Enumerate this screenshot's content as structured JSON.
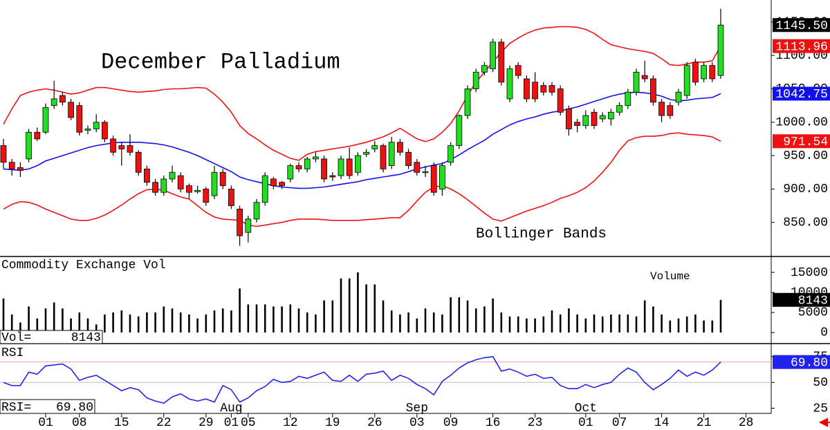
{
  "chart_data": [
    {
      "type": "candlestick",
      "title": "December Palladium",
      "annotation": "Bollinger Bands",
      "categories": [
        null,
        null,
        null,
        null,
        null,
        "01",
        null,
        null,
        null,
        "08",
        null,
        null,
        null,
        null,
        "15",
        null,
        null,
        null,
        null,
        "22",
        null,
        null,
        null,
        null,
        "29",
        null,
        null,
        "01",
        null,
        "05",
        null,
        null,
        null,
        null,
        "12",
        null,
        null,
        null,
        null,
        "19",
        null,
        null,
        null,
        null,
        "26",
        null,
        null,
        null,
        null,
        "03",
        null,
        null,
        null,
        "09",
        null,
        null,
        null,
        null,
        "16",
        null,
        null,
        null,
        null,
        "23",
        null,
        null,
        null,
        null,
        null,
        "01",
        null,
        null,
        null,
        "07",
        null,
        null,
        null,
        null,
        "14",
        null,
        null,
        null,
        null,
        "21",
        null,
        null
      ],
      "months": [
        null,
        null,
        null,
        null,
        null,
        null,
        null,
        null,
        null,
        null,
        null,
        null,
        null,
        null,
        null,
        null,
        null,
        null,
        null,
        null,
        null,
        null,
        null,
        null,
        null,
        null,
        null,
        "Aug",
        null,
        null,
        null,
        null,
        null,
        null,
        null,
        null,
        null,
        null,
        null,
        null,
        null,
        null,
        null,
        null,
        null,
        null,
        null,
        null,
        null,
        "Sep",
        null,
        null,
        null,
        null,
        null,
        null,
        null,
        null,
        null,
        null,
        null,
        null,
        null,
        null,
        null,
        null,
        null,
        null,
        null,
        "Oct",
        null,
        null,
        null,
        null,
        null,
        null,
        null,
        null,
        null,
        null,
        null,
        null,
        null,
        null,
        null,
        null
      ],
      "future_categories": [
        null,
        null,
        "28"
      ],
      "open": [
        965,
        940,
        932,
        945,
        985,
        985,
        1025,
        1040,
        1030,
        1025,
        988,
        990,
        1000,
        975,
        965,
        965,
        955,
        930,
        910,
        895,
        915,
        920,
        905,
        896,
        900,
        890,
        925,
        900,
        870,
        835,
        855,
        880,
        915,
        910,
        915,
        935,
        930,
        945,
        945,
        920,
        920,
        945,
        925,
        952,
        960,
        965,
        935,
        970,
        955,
        940,
        925,
        935,
        900,
        940,
        965,
        1010,
        1050,
        1075,
        1080,
        1120,
        1035,
        1085,
        1065,
        1060,
        1055,
        1055,
        1050,
        1020,
        1000,
        995,
        1015,
        1005,
        1005,
        1015,
        1025,
        1045,
        1070,
        1065,
        1030,
        1025,
        1030,
        1040,
        1090,
        1065,
        1085,
        1070
      ],
      "high": [
        975,
        945,
        940,
        990,
        992,
        1028,
        1062,
        1045,
        1035,
        1030,
        995,
        1012,
        1003,
        980,
        970,
        982,
        958,
        935,
        915,
        920,
        935,
        925,
        908,
        905,
        903,
        935,
        930,
        905,
        875,
        860,
        885,
        925,
        918,
        912,
        938,
        940,
        948,
        955,
        950,
        925,
        950,
        962,
        955,
        960,
        972,
        968,
        978,
        975,
        960,
        945,
        935,
        940,
        940,
        970,
        1012,
        1055,
        1080,
        1090,
        1125,
        1125,
        1085,
        1090,
        1070,
        1075,
        1060,
        1060,
        1055,
        1025,
        1005,
        1018,
        1020,
        1015,
        1020,
        1030,
        1050,
        1080,
        1092,
        1070,
        1035,
        1030,
        1050,
        1090,
        1095,
        1090,
        1090,
        1170
      ],
      "low": [
        930,
        920,
        918,
        940,
        972,
        982,
        1020,
        1025,
        1003,
        980,
        982,
        985,
        970,
        950,
        935,
        950,
        920,
        905,
        890,
        890,
        910,
        895,
        885,
        893,
        875,
        885,
        900,
        870,
        815,
        820,
        850,
        875,
        900,
        900,
        910,
        925,
        925,
        940,
        910,
        912,
        915,
        915,
        920,
        948,
        955,
        925,
        930,
        950,
        930,
        920,
        918,
        890,
        890,
        935,
        960,
        1005,
        1045,
        1070,
        1075,
        1055,
        1030,
        1065,
        1030,
        1030,
        1040,
        1040,
        1010,
        980,
        985,
        990,
        990,
        1000,
        995,
        1010,
        1020,
        1040,
        1060,
        1025,
        1000,
        1005,
        1025,
        1035,
        1055,
        1060,
        1060,
        1065
      ],
      "close": [
        940,
        930,
        928,
        985,
        975,
        1022,
        1035,
        1030,
        1007,
        985,
        990,
        1000,
        975,
        955,
        960,
        955,
        925,
        910,
        895,
        915,
        925,
        900,
        895,
        898,
        880,
        925,
        905,
        875,
        830,
        855,
        880,
        920,
        905,
        905,
        935,
        930,
        945,
        948,
        915,
        918,
        945,
        920,
        950,
        955,
        965,
        930,
        970,
        955,
        935,
        925,
        926,
        895,
        935,
        965,
        1010,
        1050,
        1075,
        1085,
        1120,
        1060,
        1080,
        1070,
        1035,
        1035,
        1045,
        1045,
        1015,
        990,
        995,
        1010,
        995,
        1010,
        1015,
        1025,
        1045,
        1075,
        1065,
        1030,
        1010,
        1010,
        1045,
        1085,
        1060,
        1085,
        1065,
        1145.5
      ],
      "close_last_label": "1145.50",
      "up_color": "#22dd22",
      "down_color": "#ee1111",
      "last_color": "#000000",
      "series": [
        {
          "color": "#ee1111",
          "last_label": "1113.96",
          "values": [
            997,
            1020,
            1040,
            1045,
            1048,
            1050,
            1048,
            1045,
            1042,
            1044,
            1048,
            1052,
            1052,
            1050,
            1048,
            1046,
            1045,
            1046,
            1047,
            1049,
            1050,
            1050,
            1051,
            1052,
            1051,
            1042,
            1030,
            1015,
            995,
            983,
            975,
            966,
            958,
            952,
            946,
            943,
            952,
            956,
            958,
            960,
            962,
            964,
            967,
            970,
            974,
            978,
            984,
            991,
            983,
            975,
            971,
            975,
            985,
            998,
            1017,
            1040,
            1060,
            1075,
            1090,
            1105,
            1118,
            1126,
            1133,
            1138,
            1141,
            1142,
            1143,
            1143,
            1142,
            1139,
            1133,
            1124,
            1116,
            1113,
            1110,
            1108,
            1106,
            1103,
            1095,
            1086,
            1085,
            1087,
            1090,
            1090,
            1092,
            1113.96
          ]
        },
        {
          "color": "#1111ee",
          "last_label": "1042.75",
          "values": [
            930,
            929,
            928,
            930,
            935,
            942,
            946,
            950,
            954,
            958,
            962,
            965,
            967,
            969,
            970,
            970,
            970,
            969,
            968,
            966,
            963,
            959,
            955,
            950,
            944,
            938,
            932,
            926,
            918,
            914,
            911,
            908,
            905,
            903,
            902,
            901,
            901,
            902,
            903,
            905,
            907,
            909,
            911,
            914,
            916,
            918,
            920,
            922,
            926,
            930,
            933,
            936,
            938,
            944,
            951,
            959,
            966,
            973,
            982,
            989,
            996,
            1001,
            1005,
            1008,
            1012,
            1015,
            1017,
            1020,
            1023,
            1027,
            1031,
            1035,
            1039,
            1042,
            1044,
            1045,
            1044,
            1042,
            1039,
            1034,
            1032,
            1033,
            1035,
            1036,
            1037,
            1042.75
          ]
        },
        {
          "color": "#ee1111",
          "last_label": "971.54",
          "values": [
            870,
            877,
            881,
            880,
            876,
            870,
            865,
            860,
            855,
            853,
            853,
            856,
            861,
            868,
            876,
            885,
            893,
            899,
            900,
            898,
            893,
            888,
            885,
            875,
            865,
            858,
            855,
            854,
            853,
            846,
            844,
            846,
            848,
            850,
            853,
            855,
            855,
            855,
            854,
            853,
            853,
            853,
            853,
            854,
            855,
            856,
            857,
            857,
            868,
            882,
            895,
            903,
            905,
            900,
            893,
            884,
            874,
            864,
            855,
            852,
            857,
            862,
            867,
            871,
            875,
            880,
            886,
            890,
            895,
            902,
            912,
            925,
            940,
            958,
            972,
            977,
            979,
            979,
            980,
            983,
            984,
            982,
            981,
            980,
            978,
            971.54
          ]
        }
      ],
      "ylim": [
        800,
        1183
      ],
      "yticks": [
        {
          "value": 850,
          "label": "850.00"
        },
        {
          "value": 900,
          "label": "900.00"
        },
        {
          "value": 950,
          "label": "950.00"
        },
        {
          "value": 1000,
          "label": "1000.00"
        },
        {
          "value": 1050,
          "label": "1050.00"
        },
        {
          "value": 1100,
          "label": "1100.00"
        },
        {
          "value": 1150,
          "label": "1150.00"
        }
      ]
    },
    {
      "type": "bar",
      "title": "Commodity Exchange Vol",
      "annotation": "Volume",
      "value_label": "Vol=",
      "color": "#000000",
      "values": [
        8500,
        4500,
        2500,
        6500,
        3500,
        6000,
        7500,
        6000,
        3500,
        5000,
        3500,
        2000,
        4500,
        5000,
        5500,
        4500,
        4000,
        5000,
        5000,
        6500,
        6000,
        5000,
        4500,
        3500,
        4500,
        5500,
        6000,
        5500,
        11000,
        7000,
        7000,
        7000,
        6500,
        6500,
        7000,
        6000,
        5000,
        4500,
        8000,
        8000,
        13500,
        13500,
        15000,
        12000,
        12000,
        8000,
        5500,
        4500,
        5000,
        3500,
        6000,
        5000,
        4500,
        8800,
        8800,
        8000,
        6000,
        6500,
        8500,
        5000,
        4000,
        4000,
        3500,
        3500,
        4000,
        5500,
        4500,
        6000,
        4500,
        3500,
        4500,
        4000,
        4500,
        4500,
        4500,
        4000,
        8000,
        6500,
        4500,
        3000,
        3500,
        4000,
        4500,
        3000,
        3000,
        8143
      ],
      "ylim": [
        -2600,
        18800
      ],
      "yticks": [
        0,
        5000,
        10000,
        15000
      ]
    },
    {
      "type": "line",
      "title": "RSI",
      "value_label": "RSI=",
      "last_label": "69.80",
      "color": "#2222ee",
      "values": [
        50,
        47,
        47,
        60,
        58,
        66,
        67,
        68,
        63,
        52,
        55,
        57,
        52,
        47,
        42,
        45,
        43,
        35,
        32,
        30,
        36,
        39,
        34,
        32,
        34,
        31,
        47,
        43,
        31,
        35,
        42,
        46,
        53,
        50,
        51,
        56,
        54,
        57,
        60,
        52,
        51,
        57,
        51,
        58,
        59,
        61,
        52,
        57,
        54,
        48,
        44,
        38,
        51,
        57,
        64,
        69,
        72,
        74,
        75,
        61,
        63,
        60,
        56,
        58,
        54,
        55,
        47,
        44,
        44,
        48,
        45,
        48,
        50,
        58,
        64,
        60,
        50,
        43,
        48,
        54,
        62,
        56,
        60,
        57,
        62,
        69.8
      ],
      "ylim": [
        20,
        87
      ],
      "yticks": [
        25,
        50,
        75
      ],
      "reference_lines": [
        70,
        50
      ]
    }
  ]
}
